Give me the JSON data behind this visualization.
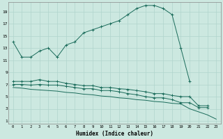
{
  "xlabel": "Humidex (Indice chaleur)",
  "bg_color": "#cce8e0",
  "grid_color": "#b0d4cc",
  "line_color": "#1a6b5a",
  "xmin": 0,
  "xmax": 23,
  "ymin": 1,
  "ymax": 20,
  "line1_x": [
    0,
    1,
    2,
    3,
    4,
    5,
    6,
    7,
    8,
    9,
    10,
    11,
    12,
    13,
    14,
    15,
    16,
    17,
    18,
    19,
    20
  ],
  "line1_y": [
    14,
    11.5,
    11.5,
    12.5,
    13,
    11.5,
    13.5,
    14,
    15.5,
    16,
    16.5,
    17,
    17.5,
    18.5,
    19.5,
    20,
    20,
    19.5,
    18.5,
    13,
    7.5
  ],
  "line2_x": [
    0,
    1,
    2,
    3,
    4,
    5,
    6,
    7,
    8,
    9,
    10,
    11,
    12,
    13,
    14,
    15,
    16,
    17,
    18,
    19,
    20,
    21,
    22
  ],
  "line2_y": [
    7.5,
    7.5,
    7.5,
    7.8,
    7.5,
    7.5,
    7.2,
    7.0,
    6.8,
    6.8,
    6.5,
    6.5,
    6.3,
    6.2,
    6.0,
    5.8,
    5.5,
    5.5,
    5.2,
    5.0,
    5.0,
    3.5,
    3.5
  ],
  "line3_x": [
    0,
    1,
    2,
    3,
    4,
    5,
    6,
    7,
    8,
    9,
    10,
    11,
    12,
    13,
    14,
    15,
    16,
    17,
    18,
    19,
    20,
    21,
    22
  ],
  "line3_y": [
    7.0,
    7.0,
    6.9,
    7.0,
    6.9,
    6.9,
    6.7,
    6.5,
    6.3,
    6.3,
    6.0,
    6.0,
    5.8,
    5.5,
    5.3,
    5.0,
    4.8,
    4.8,
    4.5,
    4.0,
    4.0,
    3.2,
    3.2
  ],
  "line4_x": [
    0,
    1,
    2,
    3,
    4,
    5,
    6,
    7,
    8,
    9,
    10,
    11,
    12,
    13,
    14,
    15,
    16,
    17,
    18,
    19,
    20,
    21,
    22,
    23
  ],
  "line4_y": [
    6.5,
    6.4,
    6.2,
    6.1,
    6.0,
    5.9,
    5.7,
    5.6,
    5.4,
    5.3,
    5.1,
    5.0,
    4.8,
    4.7,
    4.5,
    4.4,
    4.2,
    4.1,
    3.9,
    3.8,
    3.0,
    2.5,
    2.0,
    1.3
  ],
  "yticks": [
    1,
    3,
    5,
    7,
    9,
    11,
    13,
    15,
    17,
    19
  ],
  "xticks": [
    0,
    1,
    2,
    3,
    4,
    5,
    6,
    7,
    8,
    9,
    10,
    11,
    12,
    13,
    14,
    15,
    16,
    17,
    18,
    19,
    20,
    21,
    22,
    23
  ]
}
